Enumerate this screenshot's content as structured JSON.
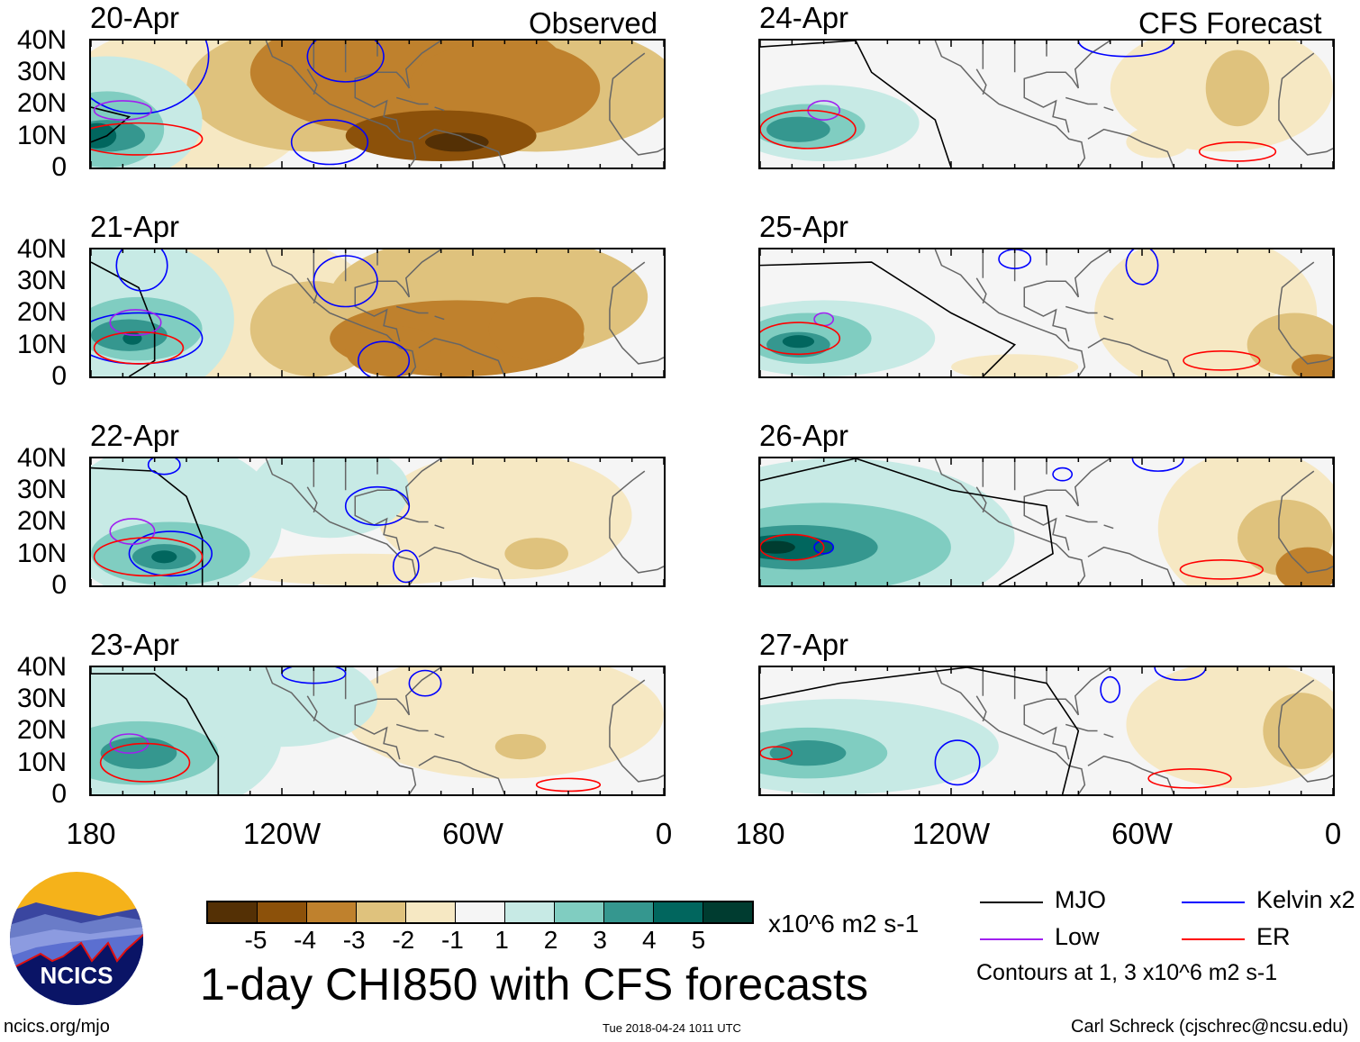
{
  "observed_label": "Observed",
  "forecast_label": "CFS Forecast",
  "panels": [
    {
      "title": "20-Apr",
      "type": "observed"
    },
    {
      "title": "21-Apr",
      "type": "observed"
    },
    {
      "title": "22-Apr",
      "type": "observed"
    },
    {
      "title": "23-Apr",
      "type": "observed"
    },
    {
      "title": "24-Apr",
      "type": "forecast"
    },
    {
      "title": "25-Apr",
      "type": "forecast"
    },
    {
      "title": "26-Apr",
      "type": "forecast"
    },
    {
      "title": "27-Apr",
      "type": "forecast"
    }
  ],
  "y_labels": [
    "40N",
    "30N",
    "20N",
    "10N",
    "0"
  ],
  "x_labels": [
    "180",
    "120W",
    "60W",
    "0"
  ],
  "colorbar": {
    "colors": [
      "#543005",
      "#8c510a",
      "#bf812d",
      "#dfc27d",
      "#f6e8c3",
      "#f5f5f5",
      "#c7eae5",
      "#80cdc1",
      "#35978f",
      "#01665e",
      "#003c30"
    ],
    "labels": [
      "-5",
      "-4",
      "-3",
      "-2",
      "-1",
      "1",
      "2",
      "3",
      "4",
      "5"
    ],
    "units": "x10^6 m2 s-1"
  },
  "title": "1-day CHI850 with CFS forecasts",
  "timestamp": "Tue 2018-04-24 1011 UTC",
  "url": "ncics.org/mjo",
  "logo_text": "NCICS",
  "legend": {
    "items": [
      {
        "label": "MJO",
        "color": "#000000"
      },
      {
        "label": "Low",
        "color": "#a020f0"
      },
      {
        "label": "Kelvin x2",
        "color": "#0000ff"
      },
      {
        "label": "ER",
        "color": "#ff0000"
      }
    ],
    "note": "Contours at 1, 3 x10^6 m2 s-1"
  },
  "credit": "Carl Schreck (cjschrec@ncsu.edu)"
}
